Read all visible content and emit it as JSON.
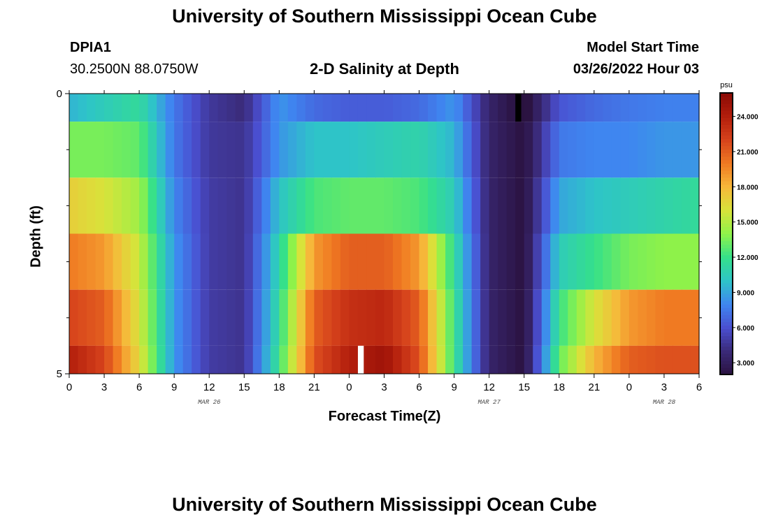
{
  "page": {
    "title": "University of Southern Mississippi Ocean Cube",
    "title_repeat": "University of Southern Mississippi Ocean Cube",
    "station_id": "DPIA1",
    "station_coords": "30.2500N  88.0750W",
    "chart_subtitle": "2-D Salinity at Depth",
    "model_label": "Model Start Time",
    "model_time": "03/26/2022 Hour 03"
  },
  "chart_data": {
    "type": "heatmap",
    "title": "2-D Salinity at Depth",
    "xlabel": "Forecast Time(Z)",
    "ylabel": "Depth (ft)",
    "x_tick_labels": [
      "0",
      "3",
      "6",
      "9",
      "12",
      "15",
      "18",
      "21",
      "0",
      "3",
      "6",
      "9",
      "12",
      "15",
      "18",
      "21",
      "0",
      "3",
      "6"
    ],
    "x_hours": [
      0,
      3,
      6,
      9,
      12,
      15,
      18,
      21,
      24,
      27,
      30,
      33,
      36,
      39,
      42,
      45,
      48,
      51,
      54
    ],
    "x_range_hours": [
      0,
      54
    ],
    "month_labels": [
      {
        "text": "MAR 26",
        "hour": 12
      },
      {
        "text": "MAR 27",
        "hour": 36
      },
      {
        "text": "MAR 28",
        "hour": 51
      }
    ],
    "y_tick_labels": [
      "0",
      "5"
    ],
    "y_range": [
      0,
      5
    ],
    "y_minor_ticks": [
      1,
      2,
      3,
      4
    ],
    "row_depths_ft": [
      0.25,
      1.0,
      2.0,
      3.0,
      4.0,
      4.75
    ],
    "row_bounds_ft": [
      0,
      0.5,
      1.5,
      2.5,
      3.5,
      4.5,
      5.0
    ],
    "hours": [
      0,
      3,
      6,
      9,
      12,
      15,
      18,
      21,
      24,
      27,
      30,
      33,
      36,
      39,
      42,
      45,
      48,
      51,
      54
    ],
    "values": [
      [
        9.5,
        10.5,
        11.5,
        7.5,
        4.8,
        4.0,
        8.5,
        7.0,
        6.5,
        6.5,
        7.0,
        8.5,
        3.5,
        1.5,
        6.2,
        7.0,
        7.5,
        7.8,
        7.8
      ],
      [
        13.5,
        13.5,
        13.0,
        7.5,
        4.8,
        4.5,
        8.5,
        10.0,
        10.0,
        10.5,
        11.0,
        9.5,
        3.5,
        2.0,
        7.5,
        8.0,
        8.0,
        8.5,
        8.5
      ],
      [
        17.0,
        16.0,
        14.5,
        8.0,
        5.0,
        4.5,
        10.0,
        12.5,
        13.0,
        13.0,
        12.5,
        10.5,
        3.5,
        2.0,
        9.0,
        10.0,
        10.5,
        11.0,
        11.5
      ],
      [
        20.0,
        19.0,
        15.5,
        8.5,
        5.0,
        4.5,
        11.0,
        19.0,
        21.0,
        21.0,
        19.0,
        11.5,
        3.5,
        2.0,
        10.5,
        12.0,
        13.5,
        14.0,
        14.0
      ],
      [
        22.0,
        21.0,
        16.0,
        8.5,
        5.0,
        4.5,
        11.5,
        21.0,
        23.0,
        23.5,
        21.0,
        12.0,
        3.5,
        2.0,
        12.0,
        16.0,
        19.0,
        20.0,
        20.0
      ],
      [
        24.0,
        22.0,
        16.5,
        8.5,
        5.0,
        4.5,
        12.0,
        21.5,
        24.0,
        25.0,
        21.5,
        12.0,
        3.5,
        2.0,
        13.0,
        18.0,
        21.0,
        21.5,
        21.5
      ]
    ],
    "missing_cells": [
      {
        "hour": 38.5,
        "depth_ft": 0.25,
        "color": "#000000"
      },
      {
        "hour": 25.0,
        "depth_ft": 4.75,
        "color": "#ffffff"
      }
    ],
    "colorbar": {
      "unit": "psu",
      "range": [
        2.0,
        26.0
      ],
      "tick_labels": [
        "3.000",
        "6.000",
        "9.000",
        "12.000",
        "15.000",
        "18.000",
        "21.000",
        "24.000"
      ],
      "tick_values": [
        3,
        6,
        9,
        12,
        15,
        18,
        21,
        24
      ],
      "colors": [
        "#2a1240",
        "#3a2a78",
        "#4a4fd0",
        "#3f86f0",
        "#2ec4c8",
        "#35e08a",
        "#8ef24a",
        "#d8e33a",
        "#f6b83a",
        "#f07a22",
        "#d6431c",
        "#b31e0c",
        "#8a0a06"
      ]
    }
  }
}
